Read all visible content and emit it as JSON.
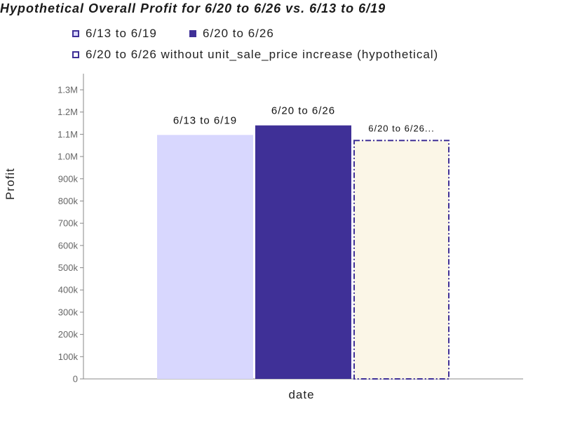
{
  "chart_data": {
    "type": "bar",
    "title": "Hypothetical Overall Profit for 6/20 to 6/26 vs. 6/13 to 6/19",
    "xlabel": "date",
    "ylabel": "Profit",
    "ylim": [
      0,
      1300000
    ],
    "yticks": [
      {
        "value": 0,
        "label": "0"
      },
      {
        "value": 100000,
        "label": "100k"
      },
      {
        "value": 200000,
        "label": "200k"
      },
      {
        "value": 300000,
        "label": "300k"
      },
      {
        "value": 400000,
        "label": "400k"
      },
      {
        "value": 500000,
        "label": "500k"
      },
      {
        "value": 600000,
        "label": "600k"
      },
      {
        "value": 700000,
        "label": "700k"
      },
      {
        "value": 800000,
        "label": "800k"
      },
      {
        "value": 900000,
        "label": "900k"
      },
      {
        "value": 1000000,
        "label": "1.0M"
      },
      {
        "value": 1100000,
        "label": "1.1M"
      },
      {
        "value": 1200000,
        "label": "1.2M"
      },
      {
        "value": 1300000,
        "label": "1.3M"
      }
    ],
    "grid": false,
    "legend_position": "top-left",
    "series": [
      {
        "name": "6/13 to 6/19",
        "value": 1097000,
        "bar_label": "6/13 to 6/19",
        "fill": "#d8d7fe",
        "stroke": "none",
        "dashed": false
      },
      {
        "name": "6/20 to 6/26",
        "value": 1140000,
        "bar_label": "6/20 to 6/26",
        "fill": "#3f3097",
        "stroke": "none",
        "dashed": false
      },
      {
        "name": "6/20 to 6/26 without unit_sale_price increase (hypothetical)",
        "value": 1072000,
        "bar_label": "6/20 to 6/26...",
        "fill": "#fbf6e7",
        "stroke": "#3f3097",
        "dashed": true
      }
    ]
  }
}
